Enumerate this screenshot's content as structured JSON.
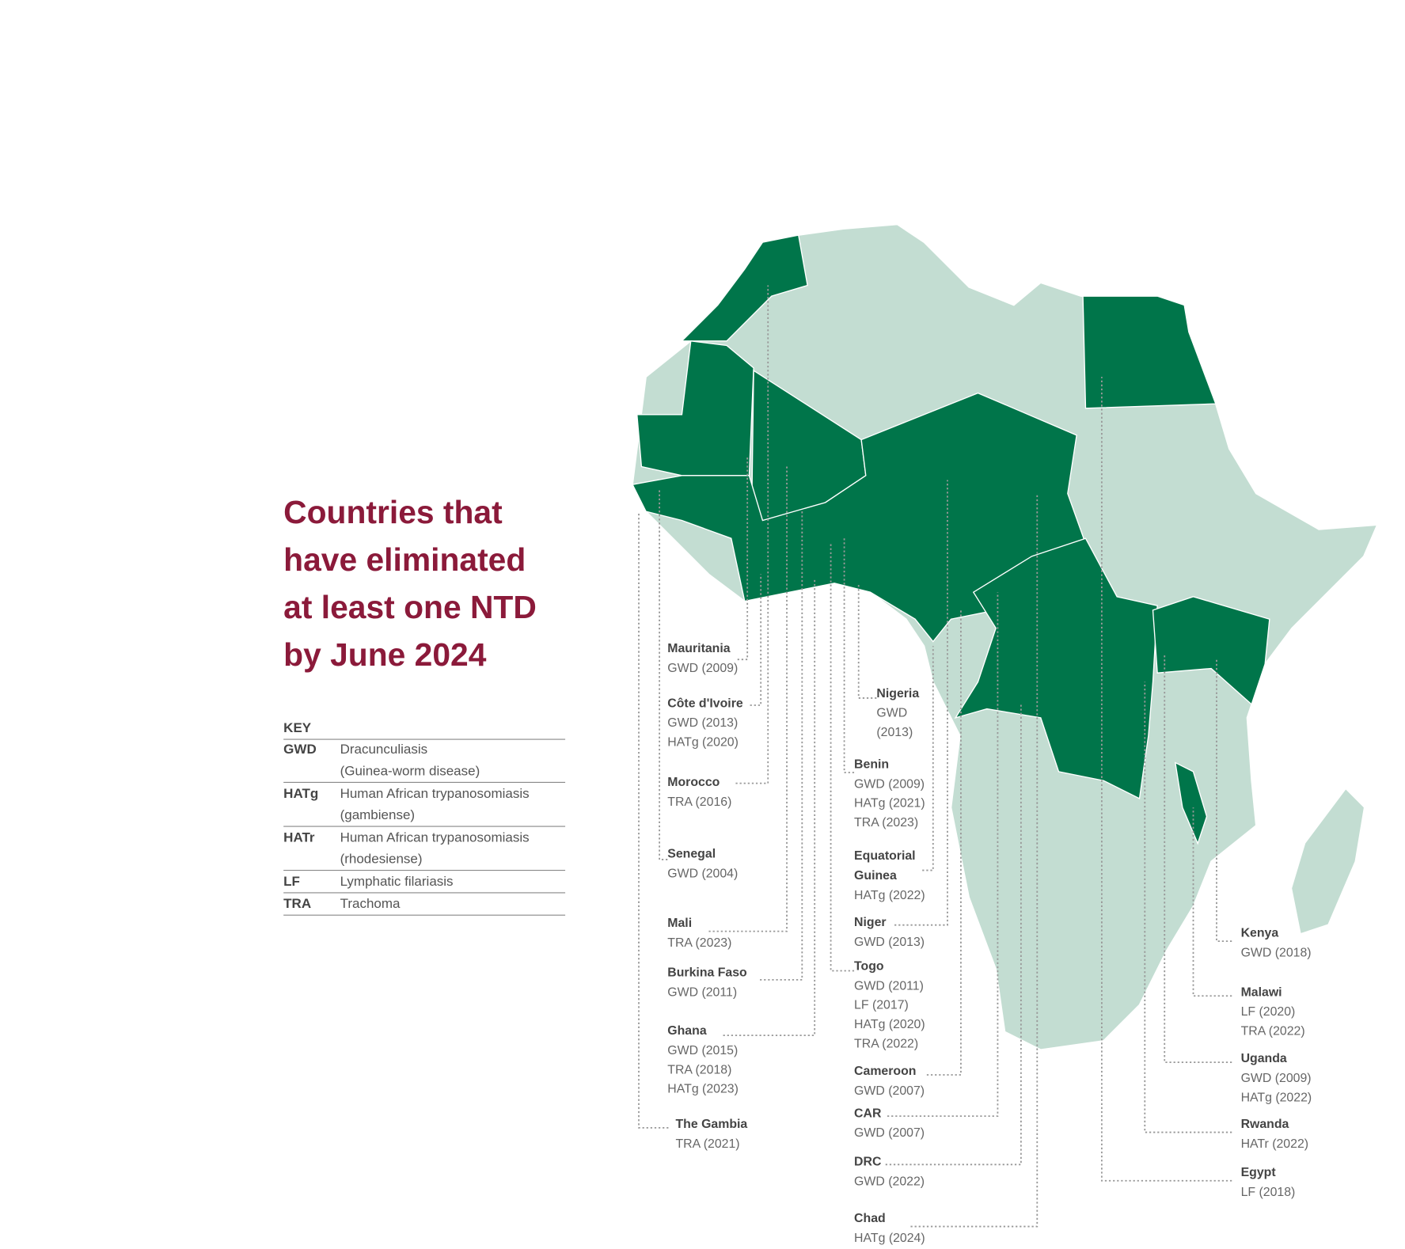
{
  "title_lines": [
    "Countries that",
    "have eliminated",
    "at least one NTD",
    "by June 2024"
  ],
  "key": {
    "heading": "KEY",
    "rows": [
      {
        "code": "GWD",
        "description": [
          "Dracunculiasis",
          "(Guinea-worm disease)"
        ]
      },
      {
        "code": "HATg",
        "description": [
          "Human African trypanosomiasis",
          "(gambiense)"
        ]
      },
      {
        "code": "HATr",
        "description": [
          "Human African trypanosomiasis",
          "(rhodesiense)"
        ]
      },
      {
        "code": "LF",
        "description": [
          "Lymphatic filariasis"
        ]
      },
      {
        "code": "TRA",
        "description": [
          "Trachoma"
        ]
      }
    ]
  },
  "countries": [
    {
      "name": [
        "Mauritania"
      ],
      "items": [
        "GWD (2009)"
      ]
    },
    {
      "name": [
        "Côte d'Ivoire"
      ],
      "items": [
        "GWD (2013)",
        "HATg (2020)"
      ]
    },
    {
      "name": [
        "Morocco"
      ],
      "items": [
        "TRA (2016)"
      ]
    },
    {
      "name": [
        "Senegal"
      ],
      "items": [
        "GWD (2004)"
      ]
    },
    {
      "name": [
        "Mali"
      ],
      "items": [
        "TRA (2023)"
      ]
    },
    {
      "name": [
        "Burkina Faso"
      ],
      "items": [
        "GWD (2011)"
      ]
    },
    {
      "name": [
        "Ghana"
      ],
      "items": [
        "GWD (2015)",
        "TRA (2018)",
        "HATg (2023)"
      ]
    },
    {
      "name": [
        "The Gambia"
      ],
      "items": [
        "TRA (2021)"
      ]
    },
    {
      "name": [
        "Nigeria"
      ],
      "items": [
        "GWD",
        "(2013)"
      ]
    },
    {
      "name": [
        "Benin"
      ],
      "items": [
        "GWD (2009)",
        "HATg (2021)",
        "TRA (2023)"
      ]
    },
    {
      "name": [
        "Equatorial",
        "Guinea"
      ],
      "items": [
        "HATg (2022)"
      ]
    },
    {
      "name": [
        "Niger"
      ],
      "items": [
        "GWD (2013)"
      ]
    },
    {
      "name": [
        "Togo"
      ],
      "items": [
        "GWD (2011)",
        "LF (2017)",
        "HATg (2020)",
        "TRA (2022)"
      ]
    },
    {
      "name": [
        "Cameroon"
      ],
      "items": [
        "GWD (2007)"
      ]
    },
    {
      "name": [
        "CAR"
      ],
      "items": [
        "GWD (2007)"
      ]
    },
    {
      "name": [
        "DRC"
      ],
      "items": [
        "GWD (2022)"
      ]
    },
    {
      "name": [
        "Chad"
      ],
      "items": [
        "HATg (2024)"
      ]
    },
    {
      "name": [
        "Kenya"
      ],
      "items": [
        "GWD (2018)"
      ]
    },
    {
      "name": [
        "Malawi"
      ],
      "items": [
        "LF (2020)",
        "TRA (2022)"
      ]
    },
    {
      "name": [
        "Uganda"
      ],
      "items": [
        "GWD (2009)",
        "HATg (2022)"
      ]
    },
    {
      "name": [
        "Rwanda"
      ],
      "items": [
        "HATr (2022)"
      ]
    },
    {
      "name": [
        "Egypt"
      ],
      "items": [
        "LF (2018)"
      ]
    }
  ]
}
